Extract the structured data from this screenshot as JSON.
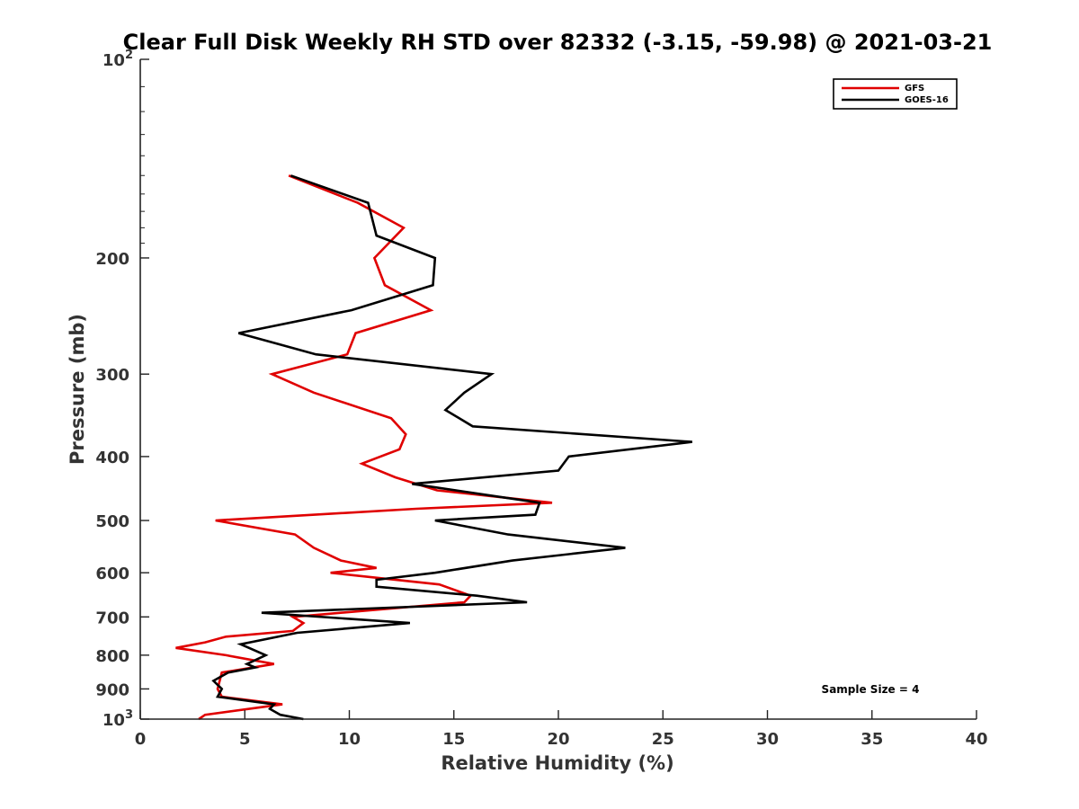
{
  "chart_data": {
    "type": "line",
    "title": "Clear Full Disk Weekly RH STD over 82332 (-3.15, -59.98) @ 2021-03-21",
    "xlabel": "Relative Humidity (%)",
    "ylabel": "Pressure (mb)",
    "xlim": [
      0,
      40
    ],
    "ylim": [
      100,
      1000
    ],
    "y_scale": "log",
    "y_reversed": true,
    "xticks": [
      0,
      5,
      10,
      15,
      20,
      25,
      30,
      35,
      40
    ],
    "yticks": [
      {
        "value": 100,
        "label": "10",
        "sup": "2"
      },
      {
        "value": 200,
        "label": "200"
      },
      {
        "value": 300,
        "label": "300"
      },
      {
        "value": 400,
        "label": "400"
      },
      {
        "value": 500,
        "label": "500"
      },
      {
        "value": 600,
        "label": "600"
      },
      {
        "value": 700,
        "label": "700"
      },
      {
        "value": 800,
        "label": "800"
      },
      {
        "value": 900,
        "label": "900"
      },
      {
        "value": 1000,
        "label": "10",
        "sup": "3"
      }
    ],
    "legend_position": "top-right",
    "annotation": "Sample Size = 4",
    "series": [
      {
        "name": "GFS",
        "color": "#e00000",
        "points": [
          [
            7.1,
            150
          ],
          [
            10.4,
            165
          ],
          [
            12.6,
            180
          ],
          [
            11.2,
            200
          ],
          [
            11.7,
            220
          ],
          [
            13.9,
            240
          ],
          [
            10.3,
            260
          ],
          [
            9.9,
            280
          ],
          [
            6.3,
            300
          ],
          [
            8.3,
            320
          ],
          [
            12.0,
            350
          ],
          [
            12.7,
            370
          ],
          [
            12.4,
            390
          ],
          [
            10.6,
            410
          ],
          [
            12.2,
            430
          ],
          [
            14.2,
            450
          ],
          [
            19.7,
            470
          ],
          [
            13.2,
            480
          ],
          [
            3.6,
            500
          ],
          [
            7.4,
            525
          ],
          [
            8.3,
            550
          ],
          [
            9.6,
            575
          ],
          [
            11.3,
            590
          ],
          [
            9.1,
            600
          ],
          [
            14.3,
            625
          ],
          [
            15.8,
            650
          ],
          [
            15.5,
            665
          ],
          [
            7.3,
            700
          ],
          [
            7.8,
            715
          ],
          [
            7.3,
            735
          ],
          [
            4.1,
            750
          ],
          [
            3.1,
            765
          ],
          [
            1.7,
            780
          ],
          [
            4.1,
            800
          ],
          [
            6.4,
            825
          ],
          [
            3.9,
            850
          ],
          [
            3.7,
            900
          ],
          [
            3.9,
            925
          ],
          [
            6.8,
            950
          ],
          [
            3.1,
            985
          ],
          [
            2.8,
            1000
          ]
        ]
      },
      {
        "name": "GOES-16",
        "color": "#000000",
        "points": [
          [
            7.2,
            150
          ],
          [
            10.9,
            165
          ],
          [
            11.3,
            185
          ],
          [
            14.1,
            200
          ],
          [
            14.0,
            220
          ],
          [
            10.1,
            240
          ],
          [
            4.7,
            260
          ],
          [
            8.4,
            280
          ],
          [
            16.8,
            300
          ],
          [
            15.5,
            320
          ],
          [
            14.6,
            340
          ],
          [
            15.9,
            360
          ],
          [
            26.4,
            380
          ],
          [
            20.5,
            400
          ],
          [
            20.0,
            420
          ],
          [
            13.0,
            440
          ],
          [
            19.1,
            470
          ],
          [
            18.9,
            490
          ],
          [
            14.1,
            500
          ],
          [
            17.6,
            525
          ],
          [
            23.2,
            550
          ],
          [
            17.8,
            575
          ],
          [
            14.1,
            600
          ],
          [
            11.3,
            615
          ],
          [
            11.3,
            630
          ],
          [
            16.1,
            650
          ],
          [
            18.5,
            665
          ],
          [
            5.8,
            690
          ],
          [
            12.9,
            715
          ],
          [
            7.5,
            740
          ],
          [
            4.8,
            770
          ],
          [
            6.0,
            800
          ],
          [
            5.1,
            825
          ],
          [
            5.5,
            835
          ],
          [
            4.2,
            850
          ],
          [
            3.5,
            875
          ],
          [
            3.9,
            900
          ],
          [
            3.7,
            925
          ],
          [
            6.4,
            950
          ],
          [
            6.2,
            965
          ],
          [
            6.7,
            985
          ],
          [
            7.8,
            1000
          ]
        ]
      }
    ]
  }
}
